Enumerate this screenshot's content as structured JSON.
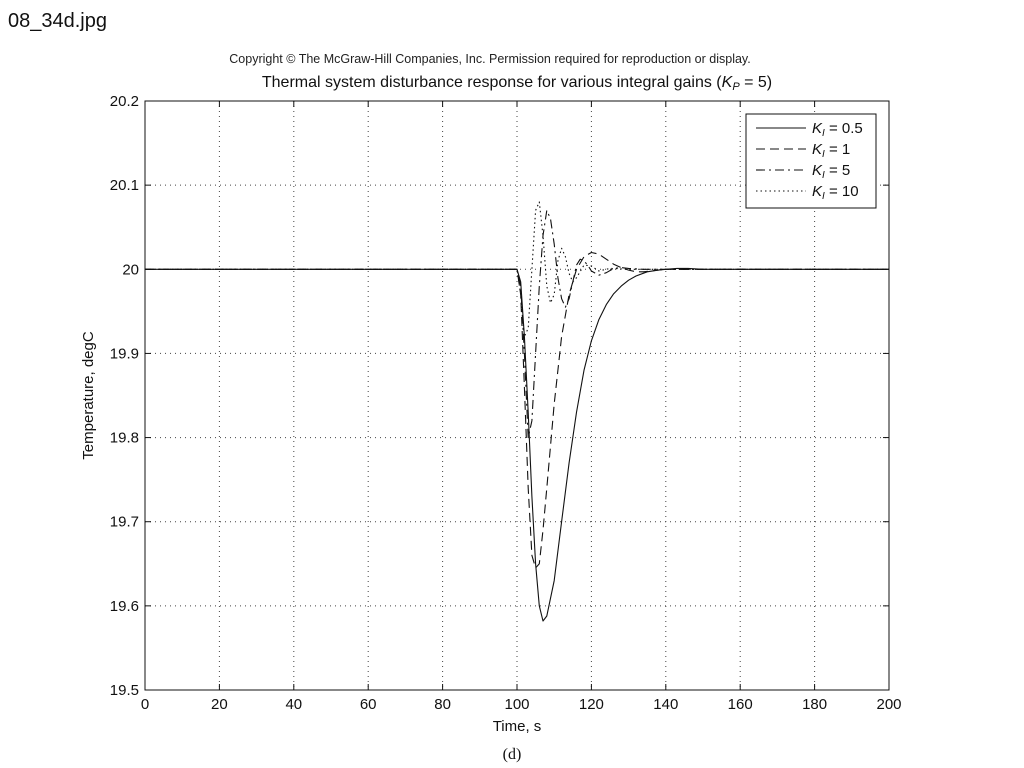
{
  "filename": "08_34d.jpg",
  "copyright": "Copyright © The McGraw-Hill Companies, Inc. Permission required for reproduction or display.",
  "caption": "(d)",
  "chart_data": {
    "type": "line",
    "title_prefix": "Thermal system disturbance response for various integral gains (",
    "title_symbol": "K",
    "title_subscript": "P",
    "title_suffix": " = 5)",
    "xlabel": "Time, s",
    "ylabel": "Temperature, degC",
    "xlim": [
      0,
      200
    ],
    "ylim": [
      19.5,
      20.2
    ],
    "xticks": [
      0,
      20,
      40,
      60,
      80,
      100,
      120,
      140,
      160,
      180,
      200
    ],
    "yticks": [
      19.5,
      19.6,
      19.7,
      19.8,
      19.9,
      20,
      20.1,
      20.2
    ],
    "ytick_labels": [
      "19.5",
      "19.6",
      "19.7",
      "19.8",
      "19.9",
      "20",
      "20.1",
      "20.2"
    ],
    "grid": true,
    "legend_position": "top-right",
    "series": [
      {
        "legend_symbol": "K",
        "legend_subscript": "I",
        "legend_value": " = 0.5",
        "style": "solid",
        "x": [
          0,
          100,
          101,
          102,
          103,
          104,
          105,
          106,
          107,
          108,
          110,
          112,
          114,
          116,
          118,
          120,
          122,
          124,
          126,
          128,
          130,
          132,
          135,
          138,
          140,
          143,
          146,
          150,
          160,
          200
        ],
        "y": [
          20.0,
          20.0,
          19.985,
          19.92,
          19.83,
          19.73,
          19.65,
          19.6,
          19.582,
          19.588,
          19.63,
          19.7,
          19.77,
          19.83,
          19.88,
          19.915,
          19.94,
          19.958,
          19.971,
          19.98,
          19.987,
          19.992,
          19.997,
          19.999,
          20.0,
          20.001,
          20.001,
          20.0,
          20.0,
          20.0
        ]
      },
      {
        "legend_symbol": "K",
        "legend_subscript": "I",
        "legend_value": " = 1",
        "style": "dashed",
        "x": [
          0,
          100,
          101,
          102,
          103,
          104,
          105,
          106,
          107,
          108,
          110,
          112,
          114,
          116,
          118,
          120,
          122,
          124,
          126,
          128,
          130,
          132,
          134,
          136,
          138,
          140,
          142,
          145,
          150,
          160,
          200
        ],
        "y": [
          20.0,
          20.0,
          19.97,
          19.86,
          19.74,
          19.66,
          19.645,
          19.65,
          19.69,
          19.74,
          19.84,
          19.92,
          19.97,
          20.0,
          20.015,
          20.02,
          20.018,
          20.012,
          20.006,
          20.002,
          19.999,
          19.997,
          19.997,
          19.998,
          19.999,
          20.0,
          20.0,
          20.0,
          20.0,
          20.0,
          20.0
        ]
      },
      {
        "legend_symbol": "K",
        "legend_subscript": "I",
        "legend_value": " = 5",
        "style": "dashdot",
        "x": [
          0,
          100,
          101,
          102,
          103,
          104,
          105,
          106,
          107,
          108,
          109,
          110,
          111,
          112,
          113,
          114,
          115,
          116,
          117,
          118,
          119,
          120,
          122,
          124,
          126,
          128,
          130,
          134,
          140,
          200
        ],
        "y": [
          20.0,
          20.0,
          19.98,
          19.9,
          19.8,
          19.82,
          19.9,
          19.98,
          20.04,
          20.07,
          20.06,
          20.03,
          19.99,
          19.965,
          19.955,
          19.965,
          19.985,
          20.005,
          20.012,
          20.01,
          20.005,
          19.998,
          19.993,
          19.996,
          20.001,
          20.002,
          20.001,
          20.0,
          20.0,
          20.0
        ]
      },
      {
        "legend_symbol": "K",
        "legend_subscript": "I",
        "legend_value": " = 10",
        "style": "dotted",
        "x": [
          0,
          100,
          101,
          102,
          103,
          104,
          105,
          106,
          107,
          108,
          109,
          110,
          111,
          112,
          113,
          114,
          115,
          116,
          118,
          120,
          122,
          125,
          130,
          200
        ],
        "y": [
          20.0,
          20.0,
          19.97,
          19.92,
          19.93,
          20.0,
          20.07,
          20.08,
          20.04,
          19.98,
          19.96,
          19.97,
          20.01,
          20.025,
          20.015,
          19.995,
          19.985,
          19.99,
          20.005,
          20.004,
          19.998,
          20.001,
          20.0,
          20.0
        ]
      }
    ]
  }
}
